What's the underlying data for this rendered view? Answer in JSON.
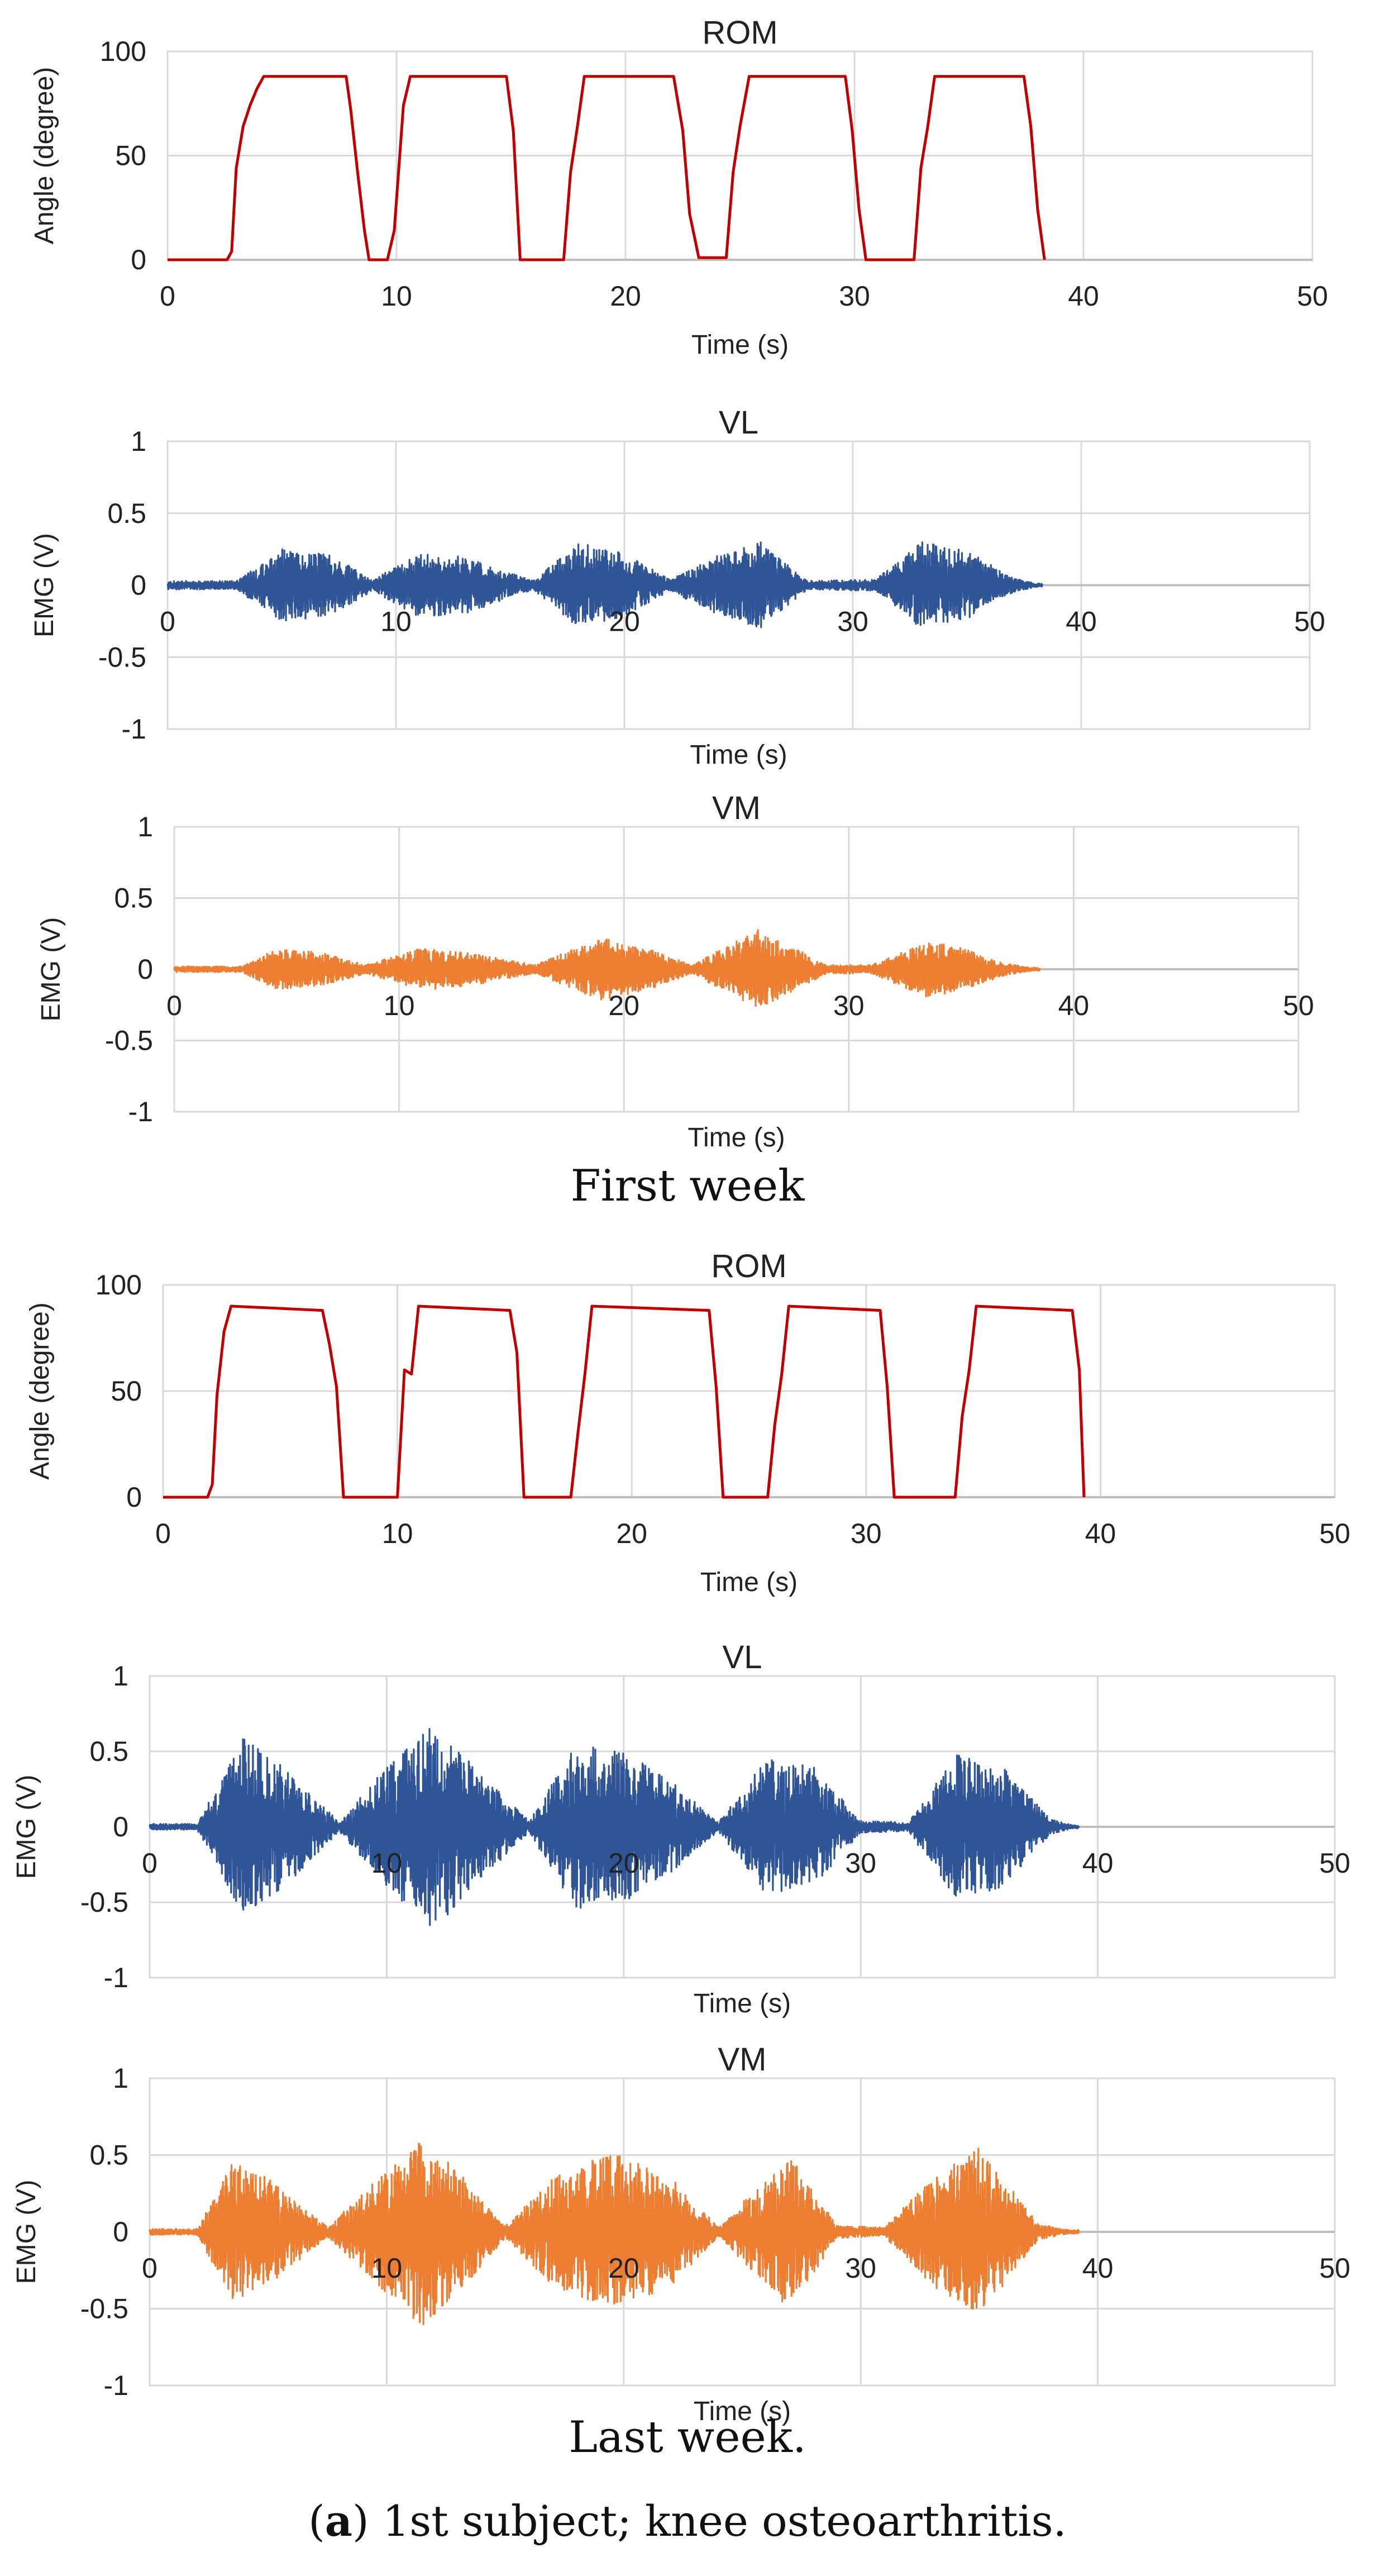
{
  "section_labels": {
    "first": "First week",
    "last": "Last week."
  },
  "figure_caption": {
    "prefix": "(",
    "letter": "a",
    "suffix": ") 1st subject; knee osteoarthritis."
  },
  "colors": {
    "rom": "#C00000",
    "vl": "#2F5597",
    "vm": "#ED7D31",
    "grid": "#D9D9D9",
    "axis": "#BFBFBF"
  },
  "chart_data": [
    {
      "id": "first-rom",
      "type": "line",
      "title": "ROM",
      "xlabel": "Time (s)",
      "ylabel": "Angle (degree)",
      "xlim": [
        0,
        50
      ],
      "ylim": [
        0,
        100
      ],
      "xticks": [
        0,
        10,
        20,
        30,
        40,
        50
      ],
      "yticks": [
        0,
        50,
        100
      ],
      "grid": true,
      "series": [
        {
          "color": "#C00000",
          "x": [
            0,
            2.6,
            2.8,
            3.0,
            3.3,
            3.6,
            3.9,
            4.2,
            7.8,
            8.0,
            8.3,
            8.6,
            8.8,
            9.6,
            9.9,
            10.3,
            10.6,
            14.8,
            15.1,
            15.4,
            17.3,
            17.6,
            17.9,
            18.2,
            22.1,
            22.5,
            22.8,
            23.2,
            24.4,
            24.7,
            25.0,
            25.4,
            29.6,
            29.9,
            30.2,
            30.5,
            32.6,
            32.9,
            33.2,
            33.5,
            37.4,
            37.7,
            38.0,
            38.3
          ],
          "y": [
            0,
            0,
            4,
            44,
            64,
            74,
            82,
            88,
            88,
            72,
            42,
            14,
            0,
            0,
            14,
            74,
            88,
            88,
            62,
            0,
            0,
            42,
            64,
            88,
            88,
            62,
            22,
            1,
            1,
            42,
            64,
            88,
            88,
            62,
            24,
            0,
            0,
            44,
            64,
            88,
            88,
            64,
            24,
            0
          ]
        }
      ]
    },
    {
      "id": "first-vl",
      "type": "line",
      "title": "VL",
      "xlabel": "Time (s)",
      "ylabel": "EMG (V)",
      "xlim": [
        0,
        50
      ],
      "ylim": [
        -1,
        1
      ],
      "xticks": [
        0,
        10,
        20,
        30,
        40,
        50
      ],
      "yticks": [
        -1,
        -0.5,
        0,
        0.5,
        1
      ],
      "grid": true,
      "series": [
        {
          "color": "#2F5597",
          "x": [
            3,
            5,
            7,
            9,
            11,
            13,
            16,
            18,
            20,
            22,
            24,
            26,
            28,
            31,
            33,
            35,
            37,
            38.3,
            50
          ],
          "envelope": [
            0.03,
            0.25,
            0.22,
            0.04,
            0.22,
            0.2,
            0.03,
            0.3,
            0.22,
            0.04,
            0.2,
            0.3,
            0.03,
            0.04,
            0.3,
            0.24,
            0.05,
            0,
            0
          ]
        }
      ]
    },
    {
      "id": "first-vm",
      "type": "line",
      "title": "VM",
      "xlabel": "Time (s)",
      "ylabel": "EMG (V)",
      "xlim": [
        0,
        50
      ],
      "ylim": [
        -1,
        1
      ],
      "xticks": [
        0,
        10,
        20,
        30,
        40,
        50
      ],
      "yticks": [
        -1,
        -0.5,
        0,
        0.5,
        1
      ],
      "grid": true,
      "series": [
        {
          "color": "#ED7D31",
          "x": [
            3,
            4.5,
            6.5,
            8.5,
            11,
            13,
            16,
            19,
            21,
            23,
            26,
            27,
            29,
            31,
            33.5,
            35,
            37,
            38.5,
            50
          ],
          "envelope": [
            0.02,
            0.14,
            0.12,
            0.03,
            0.15,
            0.12,
            0.03,
            0.22,
            0.15,
            0.03,
            0.28,
            0.2,
            0.03,
            0.03,
            0.2,
            0.15,
            0.04,
            0,
            0
          ]
        }
      ]
    },
    {
      "id": "last-rom",
      "type": "line",
      "title": "ROM",
      "xlabel": "Time (s)",
      "ylabel": "Angle (degree)",
      "xlim": [
        0,
        50
      ],
      "ylim": [
        0,
        100
      ],
      "xticks": [
        0,
        10,
        20,
        30,
        40,
        50
      ],
      "yticks": [
        0,
        50,
        100
      ],
      "grid": true,
      "series": [
        {
          "color": "#C00000",
          "x": [
            0,
            1.9,
            2.1,
            2.3,
            2.6,
            2.9,
            6.8,
            7.1,
            7.4,
            7.7,
            10.0,
            10.3,
            10.6,
            10.9,
            14.8,
            15.1,
            15.4,
            17.4,
            17.7,
            18.0,
            18.3,
            23.3,
            23.6,
            23.9,
            25.8,
            26.1,
            26.4,
            26.7,
            30.6,
            30.9,
            31.2,
            33.8,
            34.1,
            34.4,
            34.7,
            38.8,
            39.1,
            39.3
          ],
          "y": [
            0,
            0,
            6,
            48,
            78,
            90,
            88,
            72,
            52,
            0,
            0,
            60,
            58,
            90,
            88,
            68,
            0,
            0,
            30,
            58,
            90,
            88,
            52,
            0,
            0,
            34,
            58,
            90,
            88,
            52,
            0,
            0,
            38,
            60,
            90,
            88,
            60,
            0
          ]
        }
      ]
    },
    {
      "id": "last-vl",
      "type": "line",
      "title": "VL",
      "xlabel": "Time (s)",
      "ylabel": "EMG (V)",
      "xlim": [
        0,
        50
      ],
      "ylim": [
        -1,
        1
      ],
      "xticks": [
        0,
        10,
        20,
        30,
        40,
        50
      ],
      "yticks": [
        -1,
        -0.5,
        0,
        0.5,
        1
      ],
      "grid": true,
      "series": [
        {
          "color": "#2F5597",
          "x": [
            2,
            4,
            6,
            8,
            10,
            12,
            14,
            16,
            18,
            20,
            22,
            24,
            26,
            28,
            30,
            32,
            34,
            36,
            38,
            39.2,
            50
          ],
          "envelope": [
            0.02,
            0.6,
            0.35,
            0.03,
            0.4,
            0.68,
            0.35,
            0.04,
            0.55,
            0.5,
            0.3,
            0.03,
            0.45,
            0.4,
            0.04,
            0.03,
            0.48,
            0.4,
            0.05,
            0,
            0
          ]
        }
      ]
    },
    {
      "id": "last-vm",
      "type": "line",
      "title": "VM",
      "xlabel": "Time (s)",
      "ylabel": "EMG (V)",
      "xlim": [
        0,
        50
      ],
      "ylim": [
        -1,
        1
      ],
      "xticks": [
        0,
        10,
        20,
        30,
        40,
        50
      ],
      "yticks": [
        -1,
        -0.5,
        0,
        0.5,
        1
      ],
      "grid": true,
      "series": [
        {
          "color": "#ED7D31",
          "x": [
            2,
            3.5,
            5,
            7.5,
            10,
            11.5,
            13,
            15,
            17,
            19.5,
            22,
            24,
            26,
            27,
            29,
            31,
            33,
            35,
            37.5,
            39.2,
            50
          ],
          "envelope": [
            0.02,
            0.45,
            0.35,
            0.03,
            0.4,
            0.62,
            0.4,
            0.04,
            0.35,
            0.52,
            0.35,
            0.03,
            0.35,
            0.5,
            0.04,
            0.03,
            0.35,
            0.55,
            0.05,
            0,
            0
          ]
        }
      ]
    }
  ]
}
